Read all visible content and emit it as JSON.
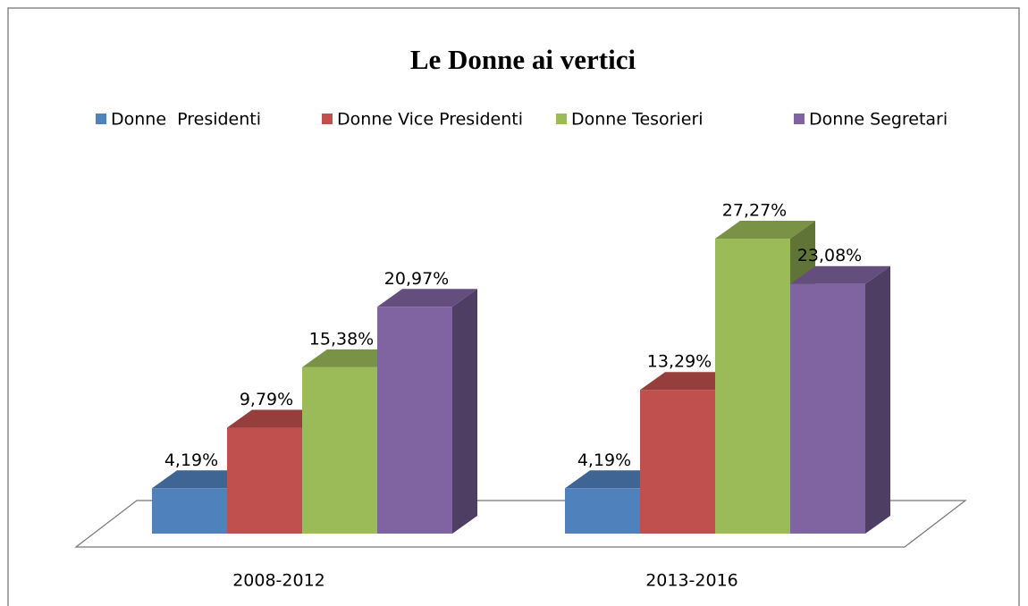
{
  "chart_data": {
    "type": "bar3d",
    "title": "Le Donne ai vertici",
    "categories": [
      "2008-2012",
      "2013-2016"
    ],
    "series": [
      {
        "name": "Donne  Presidenti",
        "color": "#4f81bd",
        "values": [
          4.19,
          4.19
        ],
        "value_labels": [
          "4,19%",
          "4,19%"
        ]
      },
      {
        "name": "Donne Vice Presidenti",
        "color": "#c0504d",
        "values": [
          9.79,
          13.29
        ],
        "value_labels": [
          "9,79%",
          "13,29%"
        ]
      },
      {
        "name": "Donne Tesorieri",
        "color": "#9bbb59",
        "values": [
          15.38,
          27.27
        ],
        "value_labels": [
          "15,38%",
          "27,27%"
        ]
      },
      {
        "name": "Donne Segretari",
        "color": "#8064a2",
        "values": [
          20.97,
          23.08
        ],
        "value_labels": [
          "20,97%",
          "23,08%"
        ]
      }
    ],
    "legend": "top"
  }
}
